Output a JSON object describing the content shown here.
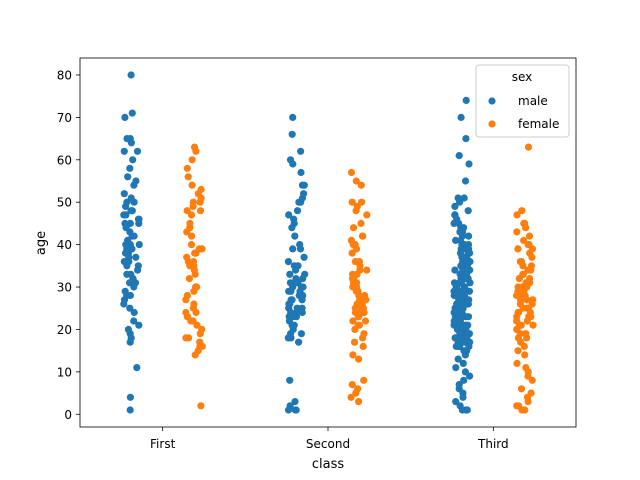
{
  "chart_data": {
    "type": "scatter",
    "subtype": "strip",
    "xlabel": "class",
    "ylabel": "age",
    "categories": [
      "First",
      "Second",
      "Third"
    ],
    "ylim": [
      -3,
      84
    ],
    "yticks": [
      0,
      10,
      20,
      30,
      40,
      50,
      60,
      70,
      80
    ],
    "legend": {
      "title": "sex",
      "placement": "top-right"
    },
    "series": [
      {
        "name": "male",
        "color": "#1f77b4",
        "values": [
          [
            80,
            71,
            70,
            65,
            65,
            64,
            62,
            62,
            60,
            58,
            56,
            55,
            54,
            52,
            51,
            50,
            50,
            49,
            48,
            48,
            47,
            47,
            46,
            46,
            45,
            45,
            45,
            44,
            43,
            42,
            42,
            41,
            40,
            40,
            40,
            39,
            39,
            38,
            38,
            37,
            37,
            36,
            36,
            35,
            35,
            34,
            33,
            33,
            32,
            31,
            31,
            30,
            29,
            28,
            28,
            27,
            26,
            25,
            24,
            22,
            21,
            20,
            19,
            18,
            17,
            11,
            4,
            1
          ],
          [
            70,
            66,
            62,
            60,
            59,
            57,
            54,
            54,
            52,
            51,
            50,
            50,
            48,
            47,
            46,
            45,
            44,
            42,
            40,
            39,
            39,
            37,
            36,
            35,
            35,
            34,
            33,
            33,
            32,
            32,
            31,
            31,
            31,
            30,
            30,
            30,
            29,
            29,
            29,
            28,
            28,
            28,
            27,
            27,
            27,
            26,
            26,
            25,
            25,
            25,
            24,
            24,
            24,
            23,
            23,
            23,
            22,
            21,
            21,
            20,
            19,
            19,
            18,
            18,
            17,
            8,
            3,
            2,
            1,
            1,
            1
          ],
          [
            74,
            70,
            65,
            61,
            59,
            55,
            51,
            51,
            50,
            49,
            48,
            47,
            47,
            46,
            45,
            45,
            44,
            44,
            43,
            43,
            42,
            42,
            41,
            41,
            40,
            40,
            40,
            39,
            39,
            39,
            38,
            38,
            38,
            37,
            37,
            37,
            36,
            36,
            36,
            35,
            35,
            35,
            34,
            34,
            34,
            33,
            33,
            33,
            33,
            32,
            32,
            32,
            32,
            31,
            31,
            31,
            31,
            30,
            30,
            30,
            30,
            30,
            29,
            29,
            29,
            29,
            29,
            28,
            28,
            28,
            28,
            28,
            27,
            27,
            27,
            27,
            27,
            26,
            26,
            26,
            26,
            26,
            25,
            25,
            25,
            25,
            25,
            24,
            24,
            24,
            24,
            24,
            23,
            23,
            23,
            23,
            23,
            22,
            22,
            22,
            22,
            22,
            21,
            21,
            21,
            21,
            21,
            20,
            20,
            20,
            20,
            20,
            19,
            19,
            19,
            19,
            19,
            18,
            18,
            18,
            18,
            18,
            17,
            17,
            17,
            17,
            16,
            16,
            16,
            16,
            15,
            15,
            14,
            13,
            12,
            11,
            10,
            9,
            8,
            7,
            6,
            5,
            4,
            3,
            2,
            1,
            1,
            1
          ]
        ]
      },
      {
        "name": "female",
        "color": "#ff7f0e",
        "values": [
          [
            63,
            62,
            60,
            58,
            56,
            54,
            53,
            52,
            51,
            50,
            50,
            49,
            48,
            48,
            47,
            45,
            44,
            43,
            42,
            40,
            39,
            39,
            38,
            38,
            37,
            36,
            36,
            35,
            35,
            35,
            34,
            33,
            32,
            30,
            30,
            29,
            28,
            27,
            26,
            25,
            24,
            24,
            23,
            23,
            22,
            22,
            21,
            20,
            19,
            18,
            18,
            17,
            16,
            16,
            15,
            14,
            2
          ],
          [
            57,
            55,
            54,
            50,
            50,
            49,
            48,
            47,
            45,
            44,
            42,
            42,
            41,
            40,
            40,
            39,
            38,
            36,
            36,
            35,
            34,
            34,
            33,
            33,
            32,
            32,
            31,
            31,
            30,
            30,
            30,
            29,
            29,
            28,
            28,
            27,
            27,
            26,
            26,
            25,
            25,
            25,
            24,
            24,
            24,
            23,
            23,
            22,
            22,
            21,
            21,
            20,
            19,
            18,
            17,
            16,
            14,
            13,
            8,
            7,
            6,
            5,
            4,
            3
          ],
          [
            63,
            48,
            47,
            45,
            45,
            44,
            43,
            42,
            41,
            40,
            40,
            39,
            39,
            38,
            37,
            36,
            36,
            35,
            35,
            34,
            34,
            33,
            33,
            32,
            32,
            31,
            31,
            31,
            30,
            30,
            30,
            29,
            29,
            29,
            28,
            28,
            28,
            27,
            27,
            27,
            26,
            26,
            26,
            25,
            25,
            25,
            24,
            24,
            24,
            23,
            23,
            23,
            22,
            22,
            22,
            21,
            21,
            21,
            20,
            20,
            19,
            19,
            18,
            18,
            17,
            16,
            15,
            14,
            12,
            11,
            10,
            9,
            8,
            6,
            5,
            4,
            3,
            2,
            2,
            1,
            1
          ]
        ]
      }
    ]
  }
}
